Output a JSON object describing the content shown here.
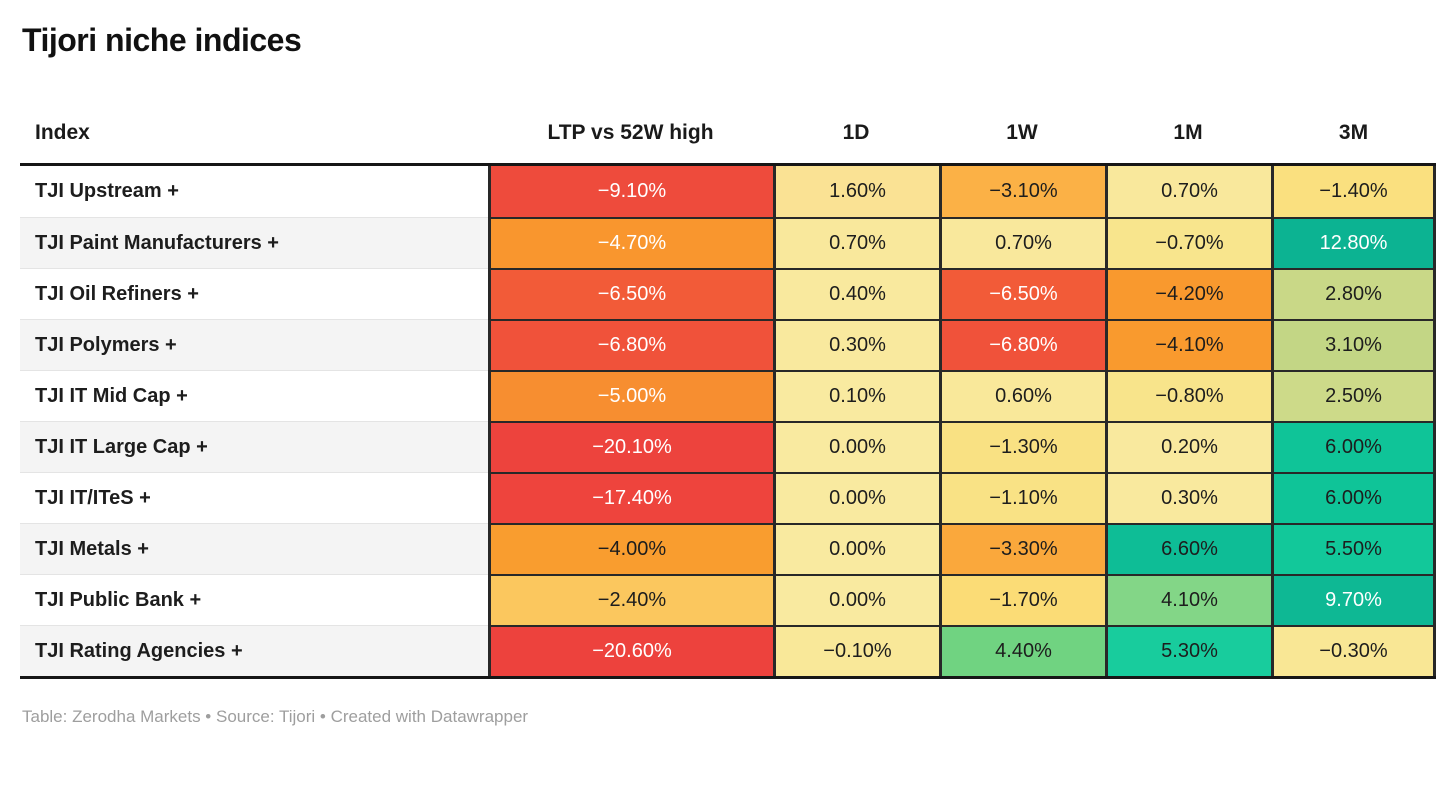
{
  "title": "Tijori niche indices",
  "table": {
    "columns": [
      "Index",
      "LTP vs 52W high",
      "1D",
      "1W",
      "1M",
      "3M"
    ],
    "rows": [
      {
        "index": "TJI Upstream +",
        "cells": [
          {
            "v": "−9.10%",
            "bg": "#EE4B3C",
            "fg": "#ffffff"
          },
          {
            "v": "1.60%",
            "bg": "#FAE294",
            "fg": "#1d1d1d"
          },
          {
            "v": "−3.10%",
            "bg": "#FBB146",
            "fg": "#1d1d1d"
          },
          {
            "v": "0.70%",
            "bg": "#F9E89C",
            "fg": "#1d1d1d"
          },
          {
            "v": "−1.40%",
            "bg": "#FAE07F",
            "fg": "#1d1d1d"
          }
        ]
      },
      {
        "index": "TJI Paint Manufacturers +",
        "cells": [
          {
            "v": "−4.70%",
            "bg": "#F9962E",
            "fg": "#ffffff"
          },
          {
            "v": "0.70%",
            "bg": "#F9E89C",
            "fg": "#1d1d1d"
          },
          {
            "v": "0.70%",
            "bg": "#F9E89C",
            "fg": "#1d1d1d"
          },
          {
            "v": "−0.70%",
            "bg": "#F8E58D",
            "fg": "#1d1d1d"
          },
          {
            "v": "12.80%",
            "bg": "#0CB392",
            "fg": "#ffffff"
          }
        ]
      },
      {
        "index": "TJI Oil Refiners +",
        "cells": [
          {
            "v": "−6.50%",
            "bg": "#F25B38",
            "fg": "#ffffff"
          },
          {
            "v": "0.40%",
            "bg": "#F9E99E",
            "fg": "#1d1d1d"
          },
          {
            "v": "−6.50%",
            "bg": "#F25B38",
            "fg": "#ffffff"
          },
          {
            "v": "−4.20%",
            "bg": "#F9992E",
            "fg": "#1d1d1d"
          },
          {
            "v": "2.80%",
            "bg": "#C9D887",
            "fg": "#1d1d1d"
          }
        ]
      },
      {
        "index": "TJI Polymers +",
        "cells": [
          {
            "v": "−6.80%",
            "bg": "#F0523A",
            "fg": "#ffffff"
          },
          {
            "v": "0.30%",
            "bg": "#F9E99E",
            "fg": "#1d1d1d"
          },
          {
            "v": "−6.80%",
            "bg": "#F0523A",
            "fg": "#ffffff"
          },
          {
            "v": "−4.10%",
            "bg": "#F99A2E",
            "fg": "#1d1d1d"
          },
          {
            "v": "3.10%",
            "bg": "#C3D685",
            "fg": "#1d1d1d"
          }
        ]
      },
      {
        "index": "TJI IT Mid Cap +",
        "cells": [
          {
            "v": "−5.00%",
            "bg": "#F78E30",
            "fg": "#ffffff"
          },
          {
            "v": "0.10%",
            "bg": "#F9EAA0",
            "fg": "#1d1d1d"
          },
          {
            "v": "0.60%",
            "bg": "#F9E89A",
            "fg": "#1d1d1d"
          },
          {
            "v": "−0.80%",
            "bg": "#F8E48B",
            "fg": "#1d1d1d"
          },
          {
            "v": "2.50%",
            "bg": "#CDDA89",
            "fg": "#1d1d1d"
          }
        ]
      },
      {
        "index": "TJI IT Large Cap +",
        "cells": [
          {
            "v": "−20.10%",
            "bg": "#ED433D",
            "fg": "#ffffff"
          },
          {
            "v": "0.00%",
            "bg": "#F9EAA0",
            "fg": "#1d1d1d"
          },
          {
            "v": "−1.30%",
            "bg": "#F9E183",
            "fg": "#1d1d1d"
          },
          {
            "v": "0.20%",
            "bg": "#F9E99E",
            "fg": "#1d1d1d"
          },
          {
            "v": "6.00%",
            "bg": "#0FC498",
            "fg": "#1d1d1d"
          }
        ]
      },
      {
        "index": "TJI IT/ITeS +",
        "cells": [
          {
            "v": "−17.40%",
            "bg": "#EE443D",
            "fg": "#ffffff"
          },
          {
            "v": "0.00%",
            "bg": "#F9EAA0",
            "fg": "#1d1d1d"
          },
          {
            "v": "−1.10%",
            "bg": "#F9E285",
            "fg": "#1d1d1d"
          },
          {
            "v": "0.30%",
            "bg": "#F9E99E",
            "fg": "#1d1d1d"
          },
          {
            "v": "6.00%",
            "bg": "#0FC498",
            "fg": "#1d1d1d"
          }
        ]
      },
      {
        "index": "TJI Metals +",
        "cells": [
          {
            "v": "−4.00%",
            "bg": "#F99D2F",
            "fg": "#1d1d1d"
          },
          {
            "v": "0.00%",
            "bg": "#F9EAA0",
            "fg": "#1d1d1d"
          },
          {
            "v": "−3.30%",
            "bg": "#FAA83C",
            "fg": "#1d1d1d"
          },
          {
            "v": "6.60%",
            "bg": "#0EBD96",
            "fg": "#1d1d1d"
          },
          {
            "v": "5.50%",
            "bg": "#12C89A",
            "fg": "#1d1d1d"
          }
        ]
      },
      {
        "index": "TJI Public Bank +",
        "cells": [
          {
            "v": "−2.40%",
            "bg": "#FBC75E",
            "fg": "#1d1d1d"
          },
          {
            "v": "0.00%",
            "bg": "#F9EAA0",
            "fg": "#1d1d1d"
          },
          {
            "v": "−1.70%",
            "bg": "#FBDC76",
            "fg": "#1d1d1d"
          },
          {
            "v": "4.10%",
            "bg": "#83D687",
            "fg": "#1d1d1d"
          },
          {
            "v": "9.70%",
            "bg": "#0EB894",
            "fg": "#ffffff"
          }
        ]
      },
      {
        "index": "TJI Rating Agencies +",
        "cells": [
          {
            "v": "−20.60%",
            "bg": "#ED423D",
            "fg": "#ffffff"
          },
          {
            "v": "−0.10%",
            "bg": "#F9E899",
            "fg": "#1d1d1d"
          },
          {
            "v": "4.40%",
            "bg": "#70D381",
            "fg": "#1d1d1d"
          },
          {
            "v": "5.30%",
            "bg": "#18CC9D",
            "fg": "#1d1d1d"
          },
          {
            "v": "−0.30%",
            "bg": "#F9E795",
            "fg": "#1d1d1d"
          }
        ]
      }
    ]
  },
  "footer": "Table: Zerodha Markets • Source: Tijori • Created with Datawrapper",
  "chart_data": {
    "type": "heatmap",
    "title": "Tijori niche indices",
    "columns": [
      "LTP vs 52W high",
      "1D",
      "1W",
      "1M",
      "3M"
    ],
    "categories": [
      "TJI Upstream +",
      "TJI Paint Manufacturers +",
      "TJI Oil Refiners +",
      "TJI Polymers +",
      "TJI IT Mid Cap +",
      "TJI IT Large Cap +",
      "TJI IT/ITeS +",
      "TJI Metals +",
      "TJI Public Bank +",
      "TJI Rating Agencies +"
    ],
    "series": [
      {
        "name": "LTP vs 52W high",
        "values": [
          -9.1,
          -4.7,
          -6.5,
          -6.8,
          -5.0,
          -20.1,
          -17.4,
          -4.0,
          -2.4,
          -20.6
        ]
      },
      {
        "name": "1D",
        "values": [
          1.6,
          0.7,
          0.4,
          0.3,
          0.1,
          0.0,
          0.0,
          0.0,
          0.0,
          -0.1
        ]
      },
      {
        "name": "1W",
        "values": [
          -3.1,
          0.7,
          -6.5,
          -6.8,
          0.6,
          -1.3,
          -1.1,
          -3.3,
          -1.7,
          4.4
        ]
      },
      {
        "name": "1M",
        "values": [
          0.7,
          -0.7,
          -4.2,
          -4.1,
          -0.8,
          0.2,
          0.3,
          6.6,
          4.1,
          5.3
        ]
      },
      {
        "name": "3M",
        "values": [
          -1.4,
          12.8,
          2.8,
          3.1,
          2.5,
          6.0,
          6.0,
          5.5,
          9.7,
          -0.3
        ]
      }
    ],
    "unit": "%",
    "color_scale": {
      "negative": "#EE4B3C",
      "neutral": "#F9EAA0",
      "positive": "#0CB392"
    },
    "legend_position": "none",
    "grid": "dark cell borders on value columns"
  }
}
